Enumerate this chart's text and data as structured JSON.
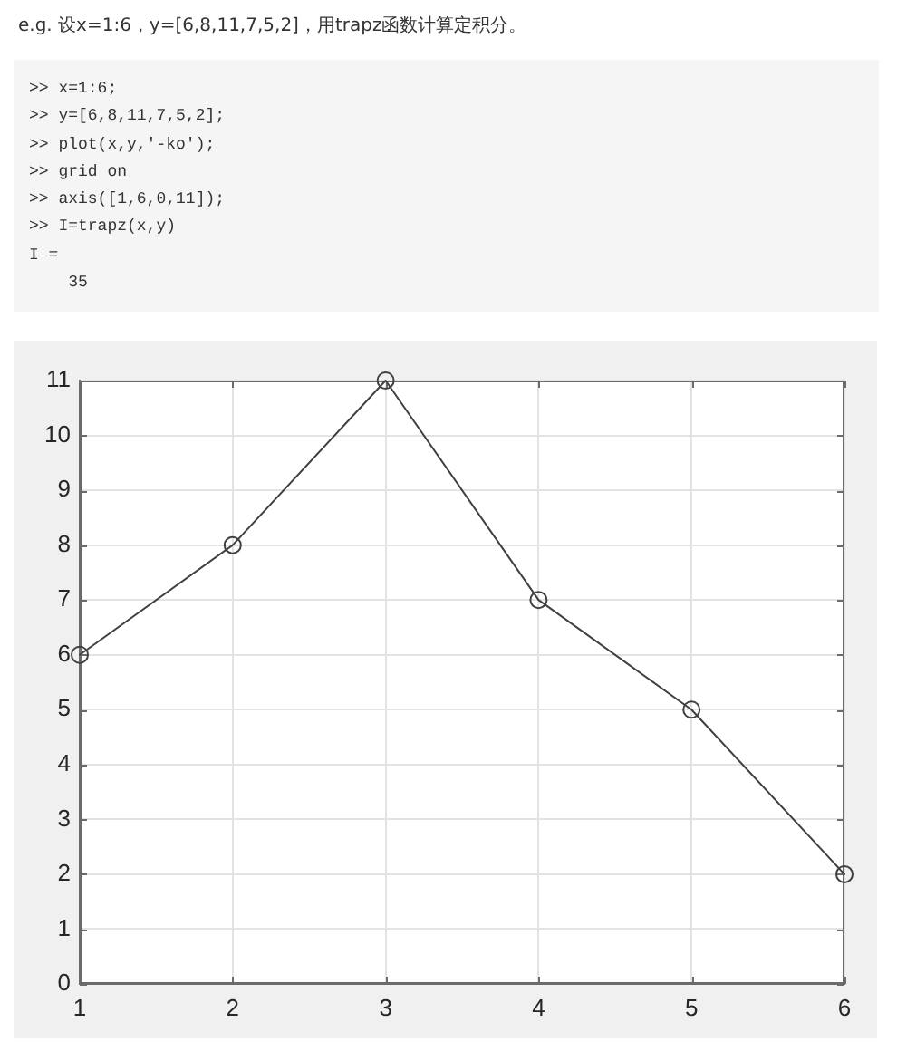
{
  "chart_data": {
    "type": "line",
    "title": "e.g. 设x=1:6，y=[6,8,11,7,5,2]，用trapz函数计算定积分。",
    "annotations": [
      ">> x=1:6;",
      ">> y=[6,8,11,7,5,2];",
      ">> plot(x,y,'-ko');",
      ">> grid on",
      ">> axis([1,6,0,11]);",
      ">> I=trapz(x,y)",
      "I =",
      "    35"
    ],
    "x": [
      1,
      2,
      3,
      4,
      5,
      6
    ],
    "series": [
      {
        "color": "#404040",
        "values": [
          6,
          8,
          11,
          7,
          5,
          2
        ]
      }
    ],
    "xlim": [
      1,
      6
    ],
    "xticks": [
      1,
      2,
      3,
      4,
      5,
      6
    ],
    "ylim": [
      0,
      11
    ],
    "yticks": [
      0,
      1,
      2,
      3,
      4,
      5,
      6,
      7,
      8,
      9,
      10,
      11
    ],
    "grid": true,
    "marker": "circle",
    "line_style": "solid"
  }
}
